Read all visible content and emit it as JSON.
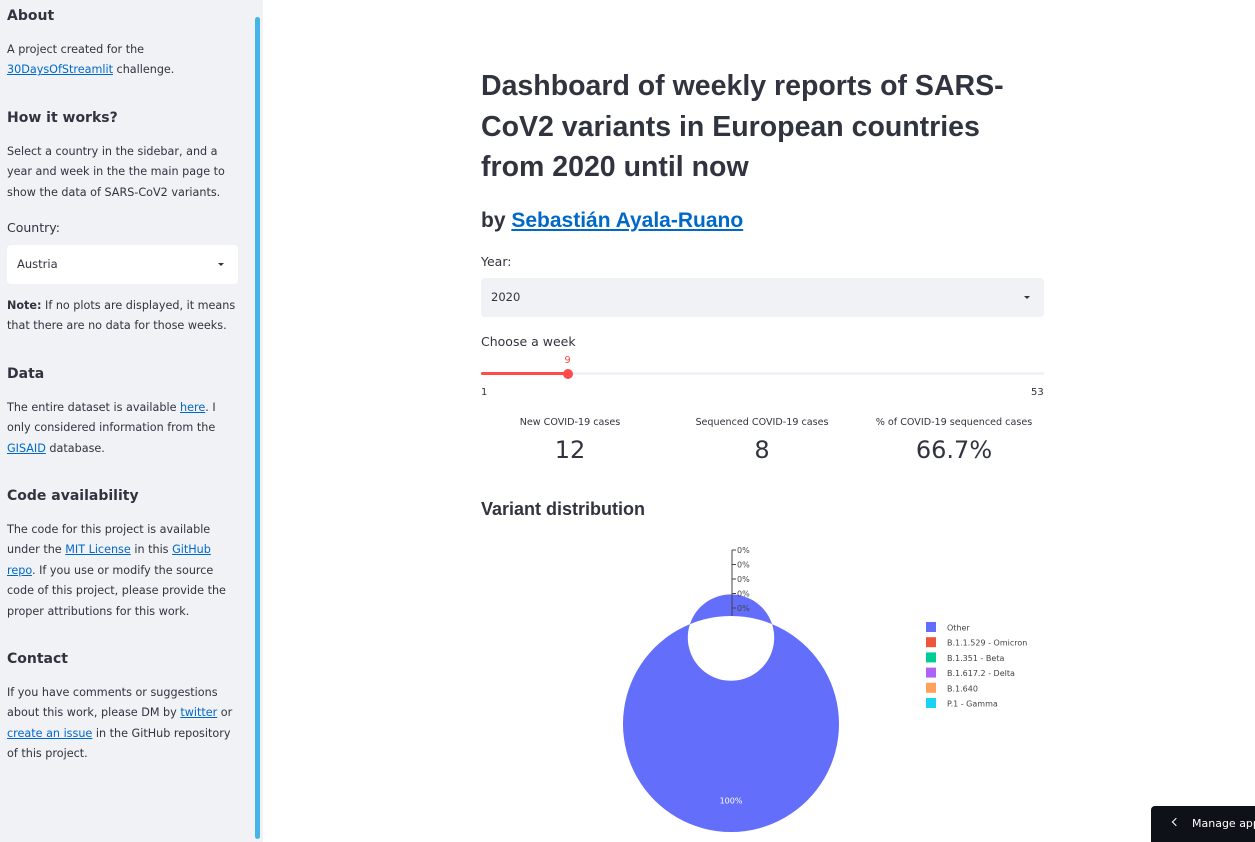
{
  "sidebar": {
    "about": {
      "heading": "About",
      "text_before": "A project created for the ",
      "link": "30DaysOfStreamlit",
      "text_after": " challenge."
    },
    "how": {
      "heading": "How it works?",
      "text": "Select a country in the sidebar, and a year and week in the the main page to show the data of SARS-CoV2 variants."
    },
    "country_label": "Country:",
    "country_value": "Austria",
    "note": {
      "bold": "Note:",
      "text": " If no plots are displayed, it means that there are no data for those weeks."
    },
    "data": {
      "heading": "Data",
      "text1": "The entire dataset is available ",
      "link1": "here",
      "text2": ". I only considered information from the ",
      "link2": "GISAID",
      "text3": " database."
    },
    "code": {
      "heading": "Code availability",
      "text1": "The code for this project is available under the ",
      "link1": "MIT License",
      "text2": " in this ",
      "link2": "GitHub repo",
      "text3": ". If you use or modify the source code of this project, please provide the proper attributions for this work."
    },
    "contact": {
      "heading": "Contact",
      "text1": "If you have comments or suggestions about this work, please DM by ",
      "link1": "twitter",
      "text2": " or ",
      "link2": "create an issue",
      "text3": " in the GitHub repository of this project."
    }
  },
  "main": {
    "title": "Dashboard of weekly reports of SARS-CoV2 variants in European countries from 2020 until now",
    "by_prefix": "by ",
    "author": "Sebastián Ayala-Ruano",
    "year_label": "Year:",
    "year_value": "2020",
    "week_label": "Choose a week",
    "week": {
      "min": 1,
      "max": 53,
      "value": 9
    },
    "week_min_label": "1",
    "week_max_label": "53",
    "week_value_label": "9",
    "metrics": [
      {
        "label": "New COVID-19 cases",
        "value": "12"
      },
      {
        "label": "Sequenced COVID-19 cases",
        "value": "8"
      },
      {
        "label": "% of COVID-19 sequenced cases",
        "value": "66.7%"
      }
    ],
    "chart_heading": "Variant distribution"
  },
  "chart_data": {
    "type": "pie",
    "title": "Variant distribution",
    "hole": 0.4,
    "categories": [
      "Other",
      "B.1.1.529 - Omicron",
      "B.1.351 - Beta",
      "B.1.617.2 - Delta",
      "B.1.640",
      "P.1 - Gamma"
    ],
    "values": [
      100,
      0,
      0,
      0,
      0,
      0
    ],
    "labels": [
      "100%",
      "0%",
      "0%",
      "0%",
      "0%",
      "0%"
    ],
    "colors": [
      "#636efa",
      "#ef553b",
      "#00cc96",
      "#ab63fa",
      "#ffa15a",
      "#19d3f3"
    ],
    "legend": "right"
  },
  "manage_app": "Manage app"
}
